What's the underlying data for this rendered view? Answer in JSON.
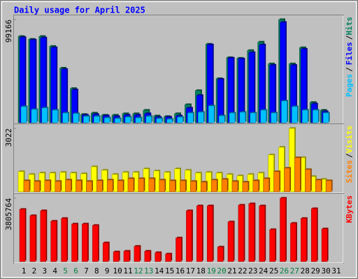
{
  "chart_data": [
    {
      "type": "bar",
      "title": "Daily usage for April 2025",
      "categories": [
        "1",
        "2",
        "3",
        "4",
        "5",
        "6",
        "7",
        "8",
        "9",
        "10",
        "11",
        "12",
        "13",
        "14",
        "15",
        "16",
        "17",
        "18",
        "19",
        "20",
        "21",
        "22",
        "23",
        "24",
        "25",
        "26",
        "27",
        "28",
        "29",
        "30",
        "31"
      ],
      "category_colors": [
        "#000000",
        "#000000",
        "#000000",
        "#000000",
        "#008040",
        "#008040",
        "#000000",
        "#000000",
        "#000000",
        "#000000",
        "#000000",
        "#008040",
        "#008040",
        "#000000",
        "#000000",
        "#000000",
        "#000000",
        "#000000",
        "#008040",
        "#008040",
        "#000000",
        "#000000",
        "#000000",
        "#000000",
        "#000000",
        "#008040",
        "#008040",
        "#000000",
        "#000000",
        "#000000",
        "#000000"
      ],
      "legend_separator": "/",
      "ylim": [
        0,
        99166
      ],
      "yticks": [
        99166
      ],
      "series": [
        {
          "name": "Hits",
          "color": "#00805c",
          "values": [
            83000,
            80300,
            83000,
            73500,
            52600,
            33000,
            8100,
            9400,
            7400,
            7400,
            8800,
            8800,
            12100,
            6700,
            6100,
            8800,
            17500,
            31000,
            75600,
            42500,
            62700,
            62100,
            69500,
            77600,
            56700,
            99166,
            56700,
            72200,
            19600,
            12100,
            null
          ]
        },
        {
          "name": "Files",
          "color": "#0000ff",
          "values": [
            82000,
            79600,
            81600,
            72200,
            51300,
            31700,
            7400,
            8100,
            6700,
            6100,
            7400,
            7400,
            8800,
            5400,
            5400,
            6700,
            14200,
            26300,
            74900,
            41800,
            62100,
            61400,
            67500,
            74900,
            55300,
            96500,
            55300,
            70800,
            18200,
            10800,
            null
          ]
        },
        {
          "name": "Pages",
          "color": "#00c0ff",
          "values": [
            15500,
            12800,
            14200,
            12100,
            9400,
            8800,
            6100,
            6100,
            4700,
            4000,
            5400,
            4700,
            6100,
            4000,
            3400,
            5400,
            9400,
            10100,
            16200,
            6700,
            9400,
            10100,
            9400,
            12100,
            9400,
            20900,
            15500,
            12100,
            12100,
            9400,
            null
          ]
        }
      ]
    },
    {
      "type": "bar",
      "legend_separator": "/",
      "ylim": [
        0,
        3022
      ],
      "yticks": [
        3022
      ],
      "series": [
        {
          "name": "Visits",
          "color": "#ffff00",
          "values": [
            963,
            830,
            897,
            897,
            930,
            897,
            863,
            1195,
            1029,
            830,
            930,
            930,
            1096,
            996,
            930,
            1096,
            1029,
            897,
            930,
            897,
            830,
            764,
            830,
            897,
            1760,
            2125,
            3022,
            1627,
            730,
            598,
            null
          ]
        },
        {
          "name": "Sites",
          "color": "#ff8000",
          "values": [
            531,
            498,
            531,
            498,
            564,
            531,
            498,
            531,
            564,
            531,
            631,
            631,
            631,
            564,
            531,
            531,
            498,
            465,
            564,
            598,
            498,
            465,
            531,
            631,
            963,
            1129,
            1627,
            1063,
            564,
            531,
            null
          ]
        }
      ]
    },
    {
      "type": "bar",
      "ylim": [
        0,
        3805764
      ],
      "yticks": [
        3805764
      ],
      "series": [
        {
          "name": "KBytes",
          "color": "#ff0000",
          "values": [
            3136600,
            2760200,
            3053000,
            2425700,
            2593000,
            2258400,
            2258400,
            2174800,
            1129200,
            585500,
            627300,
            920100,
            627300,
            543700,
            460000,
            1422000,
            3053000,
            3345800,
            3345800,
            878300,
            2383900,
            3387600,
            3471200,
            3345800,
            1923800,
            3805764,
            2300200,
            2593000,
            3178500,
            1965600,
            null
          ]
        }
      ]
    }
  ]
}
